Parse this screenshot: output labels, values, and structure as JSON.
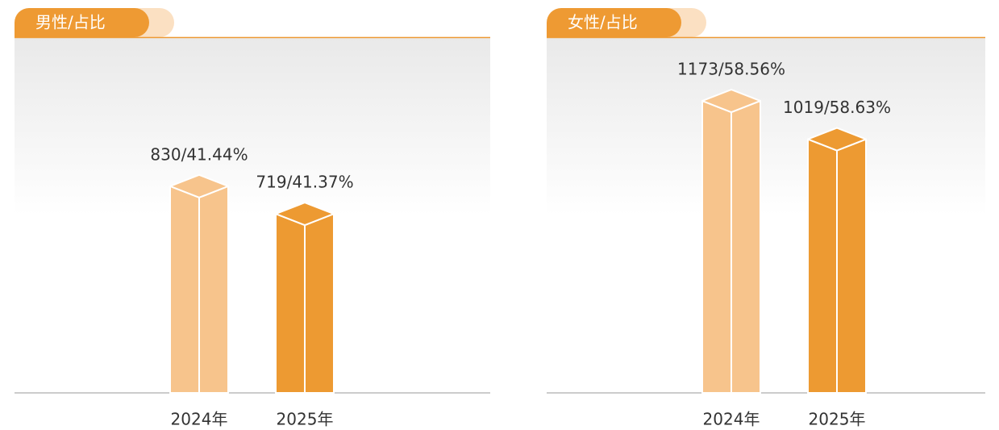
{
  "chart_data": [
    {
      "type": "bar",
      "title": "男性/占比",
      "categories": [
        "2024年",
        "2025年"
      ],
      "values": [
        830,
        719
      ],
      "value_labels": [
        "830/41.44%",
        "719/41.37%"
      ],
      "colors": [
        "#f7c48c",
        "#ed9a32"
      ]
    },
    {
      "type": "bar",
      "title": "女性/占比",
      "categories": [
        "2024年",
        "2025年"
      ],
      "values": [
        1173,
        1019
      ],
      "value_labels": [
        "1173/58.56%",
        "1019/58.63%"
      ],
      "colors": [
        "#f7c48c",
        "#ed9a32"
      ]
    }
  ]
}
